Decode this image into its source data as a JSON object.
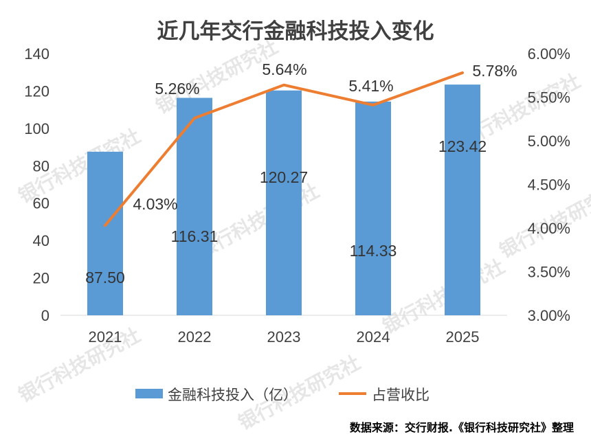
{
  "chart_data": {
    "type": "bar",
    "title": "近几年交行金融科技投入变化",
    "categories": [
      "2021",
      "2022",
      "2023",
      "2024",
      "2025"
    ],
    "series": [
      {
        "name": "金融科技投入（亿）",
        "type": "bar",
        "axis": "left",
        "color": "#5b9bd5",
        "values": [
          87.5,
          116.31,
          120.27,
          114.33,
          123.42
        ],
        "labels": [
          "87.50",
          "116.31",
          "120.27",
          "114.33",
          "123.42"
        ]
      },
      {
        "name": "占营收比",
        "type": "line",
        "axis": "right",
        "color": "#ed7d31",
        "values": [
          4.03,
          5.26,
          5.64,
          5.41,
          5.78
        ],
        "labels": [
          "4.03%",
          "5.26%",
          "5.64%",
          "5.41%",
          "5.78%"
        ]
      }
    ],
    "y_left": {
      "min": 0,
      "max": 140,
      "ticks": [
        "0",
        "20",
        "40",
        "60",
        "80",
        "100",
        "120",
        "140"
      ]
    },
    "y_right": {
      "min": 3.0,
      "max": 6.0,
      "ticks": [
        "3.00%",
        "3.50%",
        "4.00%",
        "4.50%",
        "5.00%",
        "5.50%",
        "6.00%"
      ]
    },
    "grid": false,
    "legend_position": "bottom"
  },
  "source_note": "数据来源：交行财报.《银行科技研究社》整理",
  "watermark": "银行科技研究社"
}
